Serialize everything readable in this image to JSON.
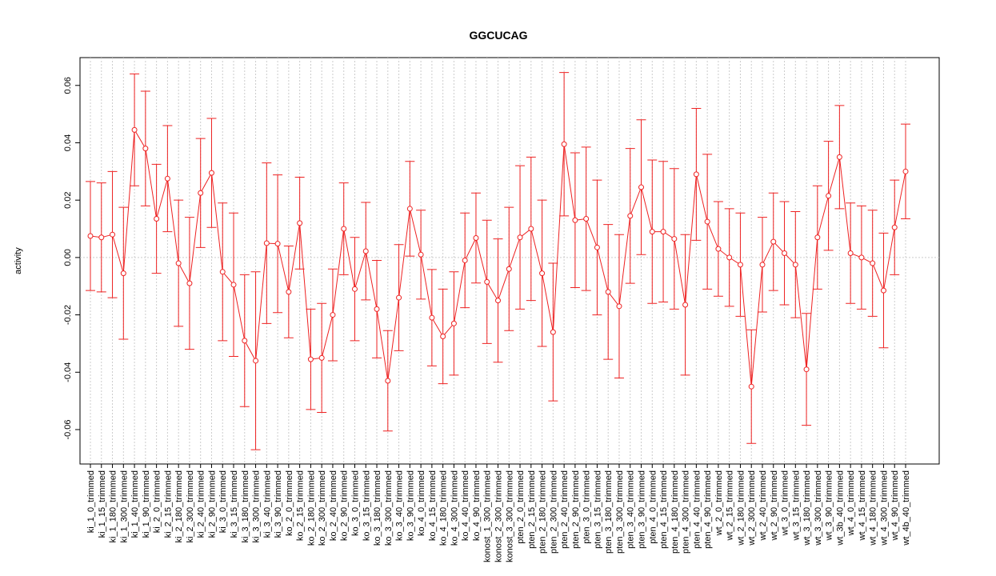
{
  "chart_data": {
    "type": "errorbar-line",
    "title": "GGCUCAG",
    "y_label": "activity",
    "color": "#ee2222",
    "grid": true,
    "reference_line": 0,
    "ylim": [
      -0.072,
      0.0697
    ],
    "yticks": [
      {
        "value": -0.06,
        "label": "-0.06"
      },
      {
        "value": -0.04,
        "label": "-0.04"
      },
      {
        "value": -0.02,
        "label": "-0.02"
      },
      {
        "value": 0,
        "label": "0.00"
      },
      {
        "value": 0.02,
        "label": "0.02"
      },
      {
        "value": 0.04,
        "label": "0.04"
      },
      {
        "value": 0.06,
        "label": "0.06"
      }
    ],
    "categories": [
      "ki_1_0_trimmed",
      "ki_1_15_trimmed",
      "ki_1_180_trimmed",
      "ki_1_300_trimmed",
      "ki_1_40_trimmed",
      "ki_1_90_trimmed",
      "ki_2_0_trimmed",
      "ki_2_15_trimmed",
      "ki_2_180_trimmed",
      "ki_2_300_trimmed",
      "ki_2_40_trimmed",
      "ki_2_90_trimmed",
      "ki_3_0_trimmed",
      "ki_3_15_trimmed",
      "ki_3_180_trimmed",
      "ki_3_300_trimmed",
      "ki_3_40_trimmed",
      "ki_3_90_trimmed",
      "ko_2_0_trimmed",
      "ko_2_15_trimmed",
      "ko_2_180_trimmed",
      "ko_2_300_trimmed",
      "ko_2_40_trimmed",
      "ko_2_90_trimmed",
      "ko_3_0_trimmed",
      "ko_3_15_trimmed",
      "ko_3_180_trimmed",
      "ko_3_300_trimmed",
      "ko_3_40_trimmed",
      "ko_3_90_trimmed",
      "ko_4_0_trimmed",
      "ko_4_15_trimmed",
      "ko_4_180_trimmed",
      "ko_4_300_trimmed",
      "ko_4_40_trimmed",
      "ko_4_90_trimmed",
      "konost_1_300_trimmed",
      "konost_2_300_trimmed",
      "konost_3_300_trimmed",
      "pten_2_0_trimmed",
      "pten_2_15_trimmed",
      "pten_2_180_trimmed",
      "pten_2_300_trimmed",
      "pten_2_40_trimmed",
      "pten_2_90_trimmed",
      "pten_3_0_trimmed",
      "pten_3_15_trimmed",
      "pten_3_180_trimmed",
      "pten_3_300_trimmed",
      "pten_3_40_trimmed",
      "pten_3_90_trimmed",
      "pten_4_0_trimmed",
      "pten_4_15_trimmed",
      "pten_4_180_trimmed",
      "pten_4_300_trimmed",
      "pten_4_40_trimmed",
      "pten_4_90_trimmed",
      "wt_2_0_trimmed",
      "wt_2_15_trimmed",
      "wt_2_180_trimmed",
      "wt_2_300_trimmed",
      "wt_2_40_trimmed",
      "wt_2_90_trimmed",
      "wt_3_0_trimmed",
      "wt_3_15_trimmed",
      "wt_3_180_trimmed",
      "wt_3_300_trimmed",
      "wt_3_90_trimmed",
      "wt_3b_40_trimmed",
      "wt_4_0_trimmed",
      "wt_4_15_trimmed",
      "wt_4_180_trimmed",
      "wt_4_300_trimmed",
      "wt_4_90_trimmed",
      "wt_4b_40_trimmed"
    ],
    "values": [
      0.0075,
      0.007,
      0.008,
      -0.0055,
      0.0445,
      0.038,
      0.0135,
      0.0275,
      -0.002,
      -0.009,
      0.0225,
      0.0295,
      -0.005,
      -0.0095,
      -0.029,
      -0.036,
      0.005,
      0.0048,
      -0.012,
      0.012,
      -0.0355,
      -0.035,
      -0.02,
      0.01,
      -0.011,
      0.0022,
      -0.018,
      -0.043,
      -0.014,
      0.017,
      0.001,
      -0.021,
      -0.0275,
      -0.023,
      -0.001,
      0.0068,
      -0.0085,
      -0.015,
      -0.004,
      0.007,
      0.01,
      -0.0055,
      -0.026,
      0.0395,
      0.013,
      0.0135,
      0.0035,
      -0.012,
      -0.017,
      0.0145,
      0.0245,
      0.009,
      0.009,
      0.0065,
      -0.0165,
      0.029,
      0.0125,
      0.003,
      0,
      -0.0025,
      -0.045,
      -0.0025,
      0.0055,
      0.0015,
      -0.0025,
      -0.039,
      0.007,
      0.0215,
      0.035,
      0.0015,
      0,
      -0.002,
      -0.0115,
      0.0105,
      0.03
    ],
    "errors": [
      0.019,
      0.019,
      0.022,
      0.023,
      0.0195,
      0.02,
      0.019,
      0.0185,
      0.022,
      0.023,
      0.019,
      0.019,
      0.024,
      0.025,
      0.023,
      0.031,
      0.028,
      0.024,
      0.016,
      0.016,
      0.0175,
      0.019,
      0.016,
      0.016,
      0.018,
      0.017,
      0.017,
      0.0175,
      0.0185,
      0.0165,
      0.0155,
      0.0168,
      0.0165,
      0.018,
      0.0165,
      0.0157,
      0.0215,
      0.0215,
      0.0215,
      0.025,
      0.025,
      0.0255,
      0.024,
      0.025,
      0.0235,
      0.025,
      0.0235,
      0.0235,
      0.025,
      0.0235,
      0.0235,
      0.025,
      0.0245,
      0.0245,
      0.0245,
      0.023,
      0.0235,
      0.0165,
      0.017,
      0.018,
      0.0198,
      0.0165,
      0.017,
      0.018,
      0.0185,
      0.0195,
      0.018,
      0.019,
      0.018,
      0.0175,
      0.018,
      0.0185,
      0.02,
      0.0165,
      0.0165
    ]
  }
}
